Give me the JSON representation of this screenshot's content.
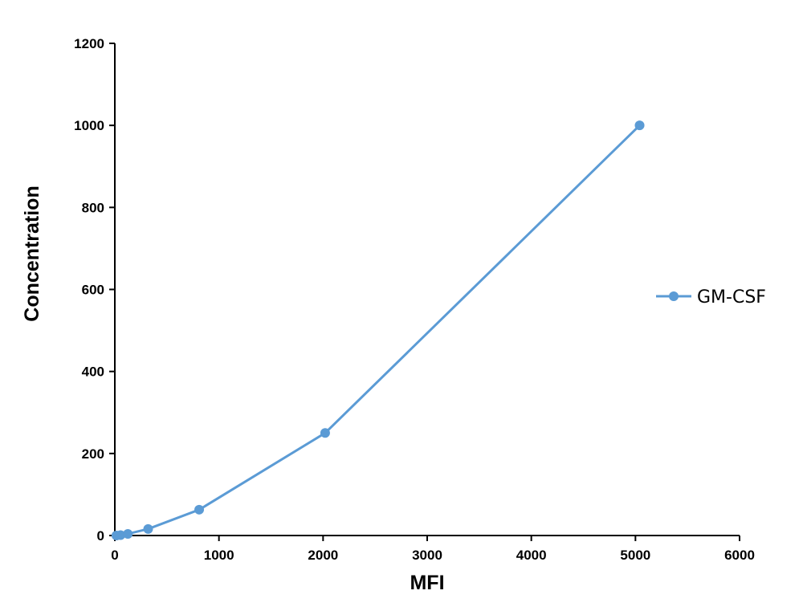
{
  "chart_data": {
    "type": "line",
    "title": "",
    "xlabel": "MFI",
    "ylabel": "Concentration",
    "xlim": [
      0,
      6000
    ],
    "ylim": [
      0,
      1200
    ],
    "x_ticks": [
      0,
      1000,
      2000,
      3000,
      4000,
      5000,
      6000
    ],
    "y_ticks": [
      0,
      200,
      400,
      600,
      800,
      1000,
      1200
    ],
    "grid": false,
    "legend_position": "right",
    "series": [
      {
        "name": "GM-CSF",
        "color": "#5b9bd5",
        "marker": "circle",
        "x": [
          15,
          55,
          125,
          320,
          810,
          2020,
          5040
        ],
        "y": [
          0,
          1,
          4,
          16,
          63,
          250,
          1000
        ]
      }
    ]
  }
}
